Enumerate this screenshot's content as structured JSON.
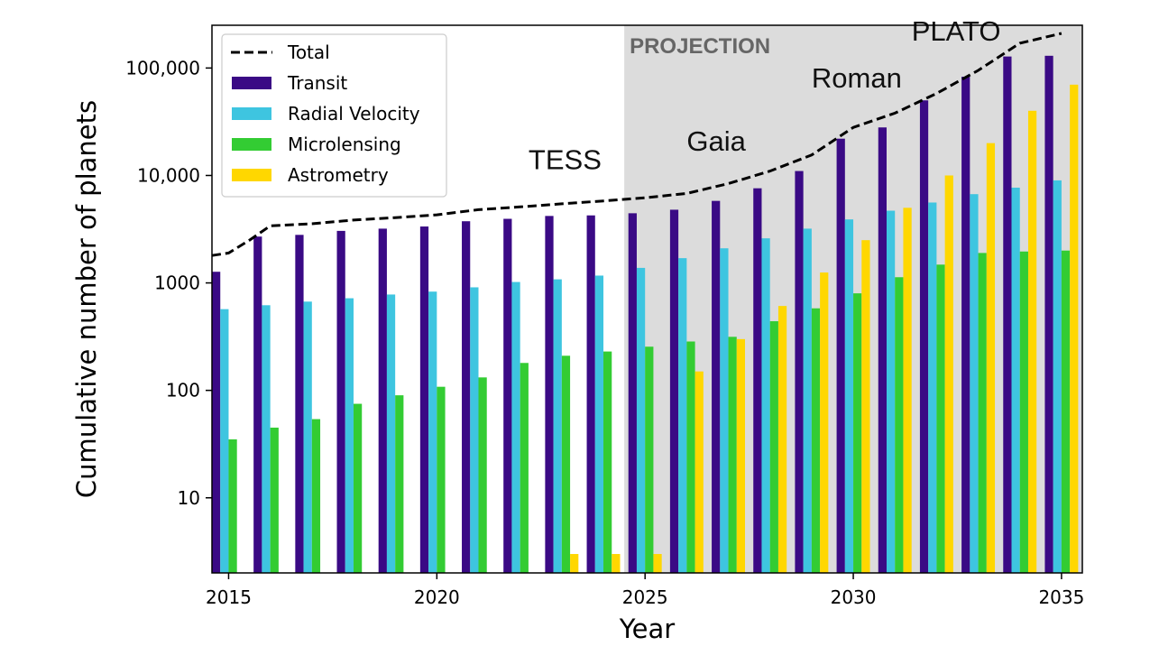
{
  "chart_data": {
    "type": "bar",
    "scale": "log",
    "title": "",
    "xlabel": "Year",
    "ylabel": "Cumulative number of planets",
    "xlim": [
      2014.6,
      2035.5
    ],
    "ylim": [
      2,
      250000
    ],
    "x_ticks": [
      2015,
      2020,
      2025,
      2030,
      2035
    ],
    "x_tick_labels": [
      "2015",
      "2020",
      "2025",
      "2030",
      "2035"
    ],
    "y_ticks": [
      10,
      100,
      1000,
      10000,
      100000
    ],
    "y_tick_labels": [
      "10",
      "100",
      "1000",
      "10,000",
      "100,000"
    ],
    "years": [
      2015,
      2016,
      2017,
      2018,
      2019,
      2020,
      2021,
      2022,
      2023,
      2024,
      2025,
      2026,
      2027,
      2028,
      2029,
      2030,
      2031,
      2032,
      2033,
      2034,
      2035
    ],
    "series": [
      {
        "name": "Transit",
        "color": "#3a0a85",
        "values": [
          1270,
          2700,
          2800,
          3050,
          3200,
          3350,
          3750,
          3950,
          4200,
          4250,
          4450,
          4800,
          5800,
          7600,
          11000,
          22000,
          28000,
          50000,
          83000,
          128000,
          130000
        ]
      },
      {
        "name": "Radial Velocity",
        "color": "#3ec5e0",
        "values": [
          570,
          620,
          670,
          720,
          780,
          830,
          910,
          1020,
          1080,
          1170,
          1380,
          1700,
          2100,
          2600,
          3200,
          3900,
          4700,
          5600,
          6700,
          7700,
          9000
        ]
      },
      {
        "name": "Microlensing",
        "color": "#33cc33",
        "values": [
          35,
          45,
          54,
          75,
          90,
          108,
          132,
          180,
          210,
          230,
          255,
          285,
          315,
          440,
          580,
          800,
          1130,
          1480,
          1900,
          1960,
          2000
        ]
      },
      {
        "name": "Astrometry",
        "color": "#ffd700",
        "values": [
          null,
          null,
          null,
          null,
          null,
          null,
          null,
          null,
          3,
          3,
          3,
          150,
          300,
          610,
          1250,
          2500,
          5000,
          10000,
          20000,
          40000,
          70000
        ]
      }
    ],
    "total": {
      "name": "Total",
      "style": "dashed",
      "color": "#000000",
      "x": [
        2014.6,
        2015.0,
        2015.5,
        2016.0,
        2017.0,
        2018.0,
        2019.0,
        2020.0,
        2021.0,
        2022.0,
        2023.0,
        2024.0,
        2025.0,
        2026.0,
        2027.0,
        2028.0,
        2029.0,
        2030.0,
        2031.0,
        2032.0,
        2033.0,
        2034.0,
        2035.0
      ],
      "values": [
        1800,
        1900,
        2500,
        3400,
        3550,
        3850,
        4050,
        4300,
        4800,
        5100,
        5450,
        5800,
        6200,
        6800,
        8400,
        11000,
        15500,
        28000,
        38000,
        58000,
        95000,
        170000,
        210000
      ]
    },
    "legend": {
      "position": "top-left",
      "entries": [
        "Total",
        "Transit",
        "Radial Velocity",
        "Microlensing",
        "Astrometry"
      ]
    },
    "shaded_region": {
      "label": "PROJECTION",
      "x_start": 2024.5,
      "x_end": 2035.5,
      "color": "#dcdcdc"
    },
    "annotations": [
      {
        "text": "TESS",
        "x": 2022.2,
        "y": 11500
      },
      {
        "text": "Gaia",
        "x": 2026.0,
        "y": 17000
      },
      {
        "text": "Roman",
        "x": 2029.0,
        "y": 66000
      },
      {
        "text": "PLATO",
        "x": 2031.4,
        "y": 180000
      }
    ]
  }
}
